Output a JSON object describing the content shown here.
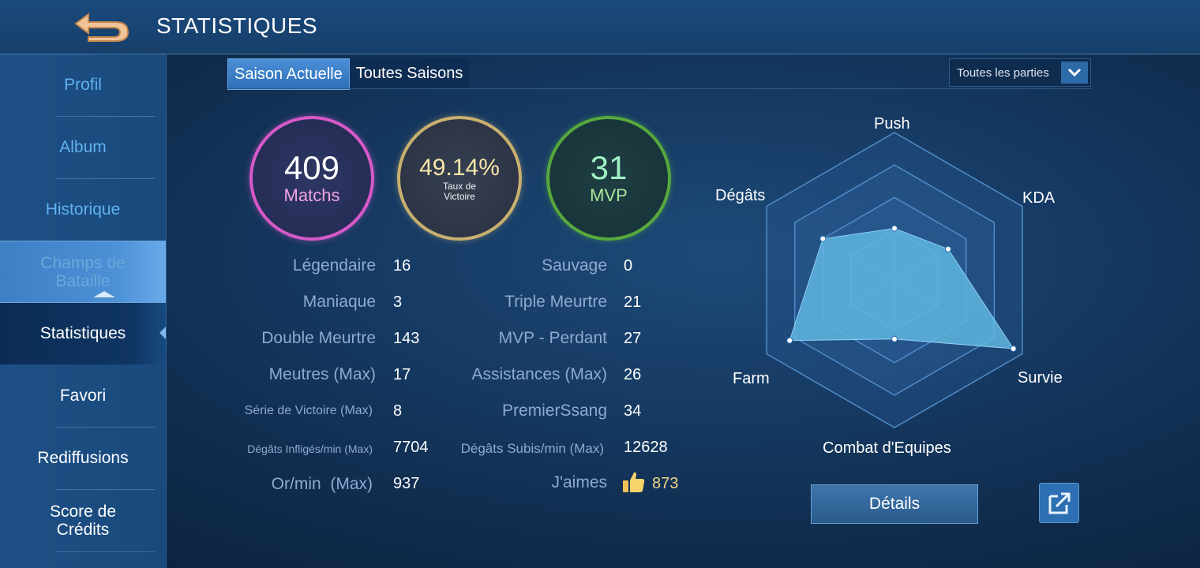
{
  "header": {
    "title": "STATISTIQUES",
    "back_icon": "back-arrow-icon"
  },
  "sidebar": {
    "items": [
      {
        "label": "Profil"
      },
      {
        "label": "Album"
      },
      {
        "label": "Historique"
      },
      {
        "label": "Champs de Bataille"
      },
      {
        "label": "Statistiques"
      },
      {
        "label": "Favori"
      },
      {
        "label": "Rediffusions"
      },
      {
        "label": "Score de Crédits"
      }
    ],
    "selected": "Statistiques"
  },
  "tabs": [
    {
      "label": "Saison Actuelle",
      "active": true
    },
    {
      "label": "Toutes Saisons",
      "active": false
    }
  ],
  "filter": {
    "label": "Toutes les parties"
  },
  "circles": {
    "matchs": {
      "value": "409",
      "label": "Matchs",
      "color": "#d759c9"
    },
    "taux": {
      "value": "49.14%",
      "label": "Taux de Victoire",
      "color": "#c9b06f"
    },
    "mvp": {
      "value": "31",
      "label": "MVP",
      "color": "#57a83d"
    }
  },
  "stats_left": [
    {
      "label": "Légendaire",
      "value": "16"
    },
    {
      "label": "Maniaque",
      "value": "3"
    },
    {
      "label": "Double Meurtre",
      "value": "143"
    },
    {
      "label": "Meutres (Max)",
      "value": "17"
    },
    {
      "label": "Série de Victoire (Max)",
      "value": "8"
    },
    {
      "label": "Dégâts Infligés/min (Max)",
      "value": "7704"
    },
    {
      "label": "Or/min  (Max)",
      "value": "937"
    }
  ],
  "stats_right": [
    {
      "label": "Sauvage",
      "value": "0"
    },
    {
      "label": "Triple Meurtre",
      "value": "21"
    },
    {
      "label": "MVP - Perdant",
      "value": "27"
    },
    {
      "label": "Assistances (Max)",
      "value": "26"
    },
    {
      "label": "PremierSsang",
      "value": "34"
    },
    {
      "label": "Dégâts Subis/min (Max)",
      "value": "12628"
    },
    {
      "label": "J'aimes",
      "value": "873"
    }
  ],
  "radar": {
    "axes": [
      "Push",
      "KDA",
      "Survie",
      "Combat d'Equipes",
      "Farm",
      "Dégâts"
    ],
    "values": [
      0.35,
      0.42,
      0.93,
      0.4,
      0.82,
      0.56
    ],
    "fill_color": "#5fb6e0"
  },
  "buttons": {
    "details": "Détails",
    "share_icon": "share-icon"
  }
}
